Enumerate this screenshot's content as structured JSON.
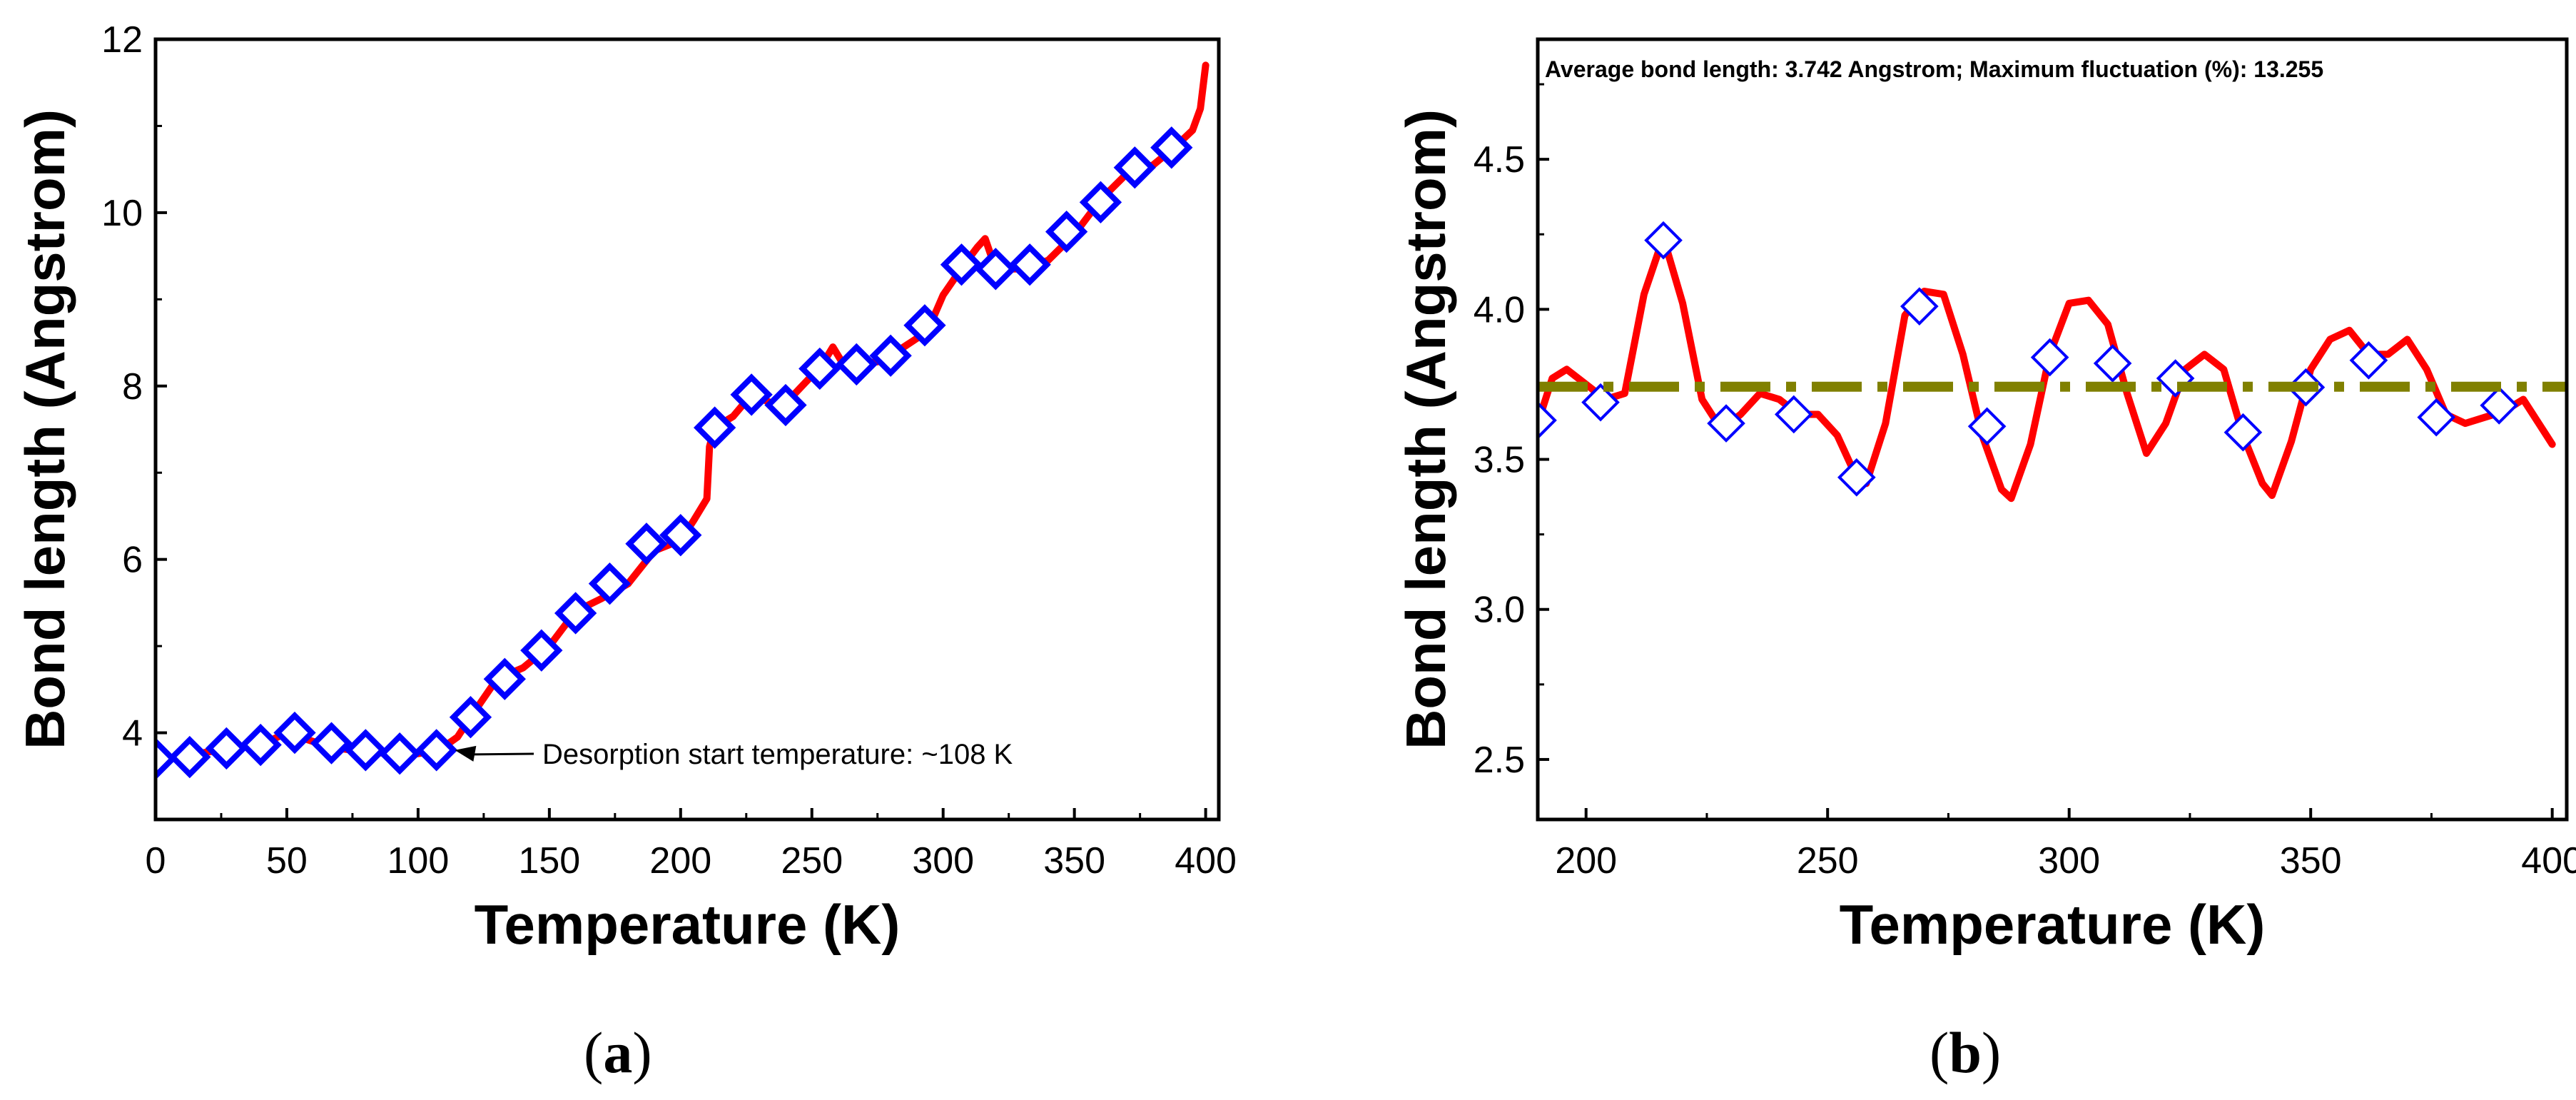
{
  "chart_data": [
    {
      "type": "line",
      "panel": "a",
      "xlabel": "Temperature (K)",
      "ylabel": "Bond length (Angstrom)",
      "xlim": [
        0,
        405
      ],
      "ylim": [
        3.0,
        12.0
      ],
      "xticks": [
        0,
        50,
        100,
        150,
        200,
        250,
        300,
        350,
        400
      ],
      "yticks": [
        4,
        6,
        8,
        10,
        12
      ],
      "series": [
        {
          "name": "bond length (line)",
          "color": "#ff0000",
          "x": [
            0,
            10,
            20,
            30,
            40,
            50,
            60,
            70,
            80,
            90,
            100,
            108,
            115,
            120,
            130,
            140,
            150,
            160,
            170,
            180,
            190,
            200,
            205,
            210,
            211,
            213,
            220,
            227,
            235,
            240,
            250,
            255,
            258,
            262,
            267,
            275,
            280,
            290,
            295,
            300,
            308,
            313,
            316,
            320,
            330,
            340,
            350,
            360,
            370,
            380,
            388,
            395,
            398,
            400
          ],
          "y": [
            3.7,
            3.72,
            3.78,
            3.82,
            3.86,
            4.0,
            3.9,
            3.82,
            3.78,
            3.76,
            3.76,
            3.8,
            3.95,
            4.18,
            4.62,
            4.75,
            5.0,
            5.4,
            5.55,
            5.72,
            6.1,
            6.22,
            6.45,
            6.7,
            7.3,
            7.52,
            7.65,
            7.9,
            7.8,
            7.8,
            8.12,
            8.3,
            8.45,
            8.25,
            8.25,
            8.28,
            8.35,
            8.55,
            8.7,
            9.05,
            9.4,
            9.6,
            9.7,
            9.35,
            9.35,
            9.45,
            9.75,
            10.15,
            10.45,
            10.55,
            10.75,
            10.95,
            11.2,
            11.7
          ]
        },
        {
          "name": "bond length (markers)",
          "color": "#0000ff",
          "marker": "diamond",
          "x": [
            0,
            13,
            27,
            40,
            53,
            67,
            80,
            93,
            107,
            120,
            133,
            147,
            160,
            173,
            187,
            200,
            213,
            227,
            240,
            253,
            267,
            280,
            293,
            307,
            320,
            333,
            347,
            360,
            373,
            387
          ],
          "y": [
            3.7,
            3.72,
            3.82,
            3.86,
            4.0,
            3.88,
            3.8,
            3.76,
            3.8,
            4.18,
            4.62,
            4.95,
            5.38,
            5.72,
            6.18,
            6.28,
            7.52,
            7.9,
            7.78,
            8.2,
            8.25,
            8.35,
            8.7,
            9.4,
            9.35,
            9.4,
            9.78,
            10.12,
            10.52,
            10.75
          ]
        }
      ],
      "annotations": [
        {
          "text": "Desorption start temperature: ~108 K",
          "x": 108,
          "y": 3.8
        }
      ]
    },
    {
      "type": "line",
      "panel": "b",
      "xlabel": "Temperature (K)",
      "ylabel": "Bond length (Angstrom)",
      "xlim": [
        190,
        403
      ],
      "ylim": [
        2.3,
        4.9
      ],
      "xticks": [
        200,
        250,
        300,
        350,
        400
      ],
      "yticks": [
        2.5,
        3.0,
        3.5,
        4.0,
        4.5
      ],
      "series": [
        {
          "name": "bond length (line)",
          "color": "#ff0000",
          "x": [
            190,
            193,
            196,
            200,
            204,
            208,
            212,
            216,
            220,
            224,
            228,
            232,
            236,
            240,
            244,
            248,
            252,
            256,
            258,
            262,
            266,
            270,
            274,
            278,
            282,
            286,
            288,
            292,
            296,
            300,
            304,
            308,
            312,
            316,
            320,
            324,
            328,
            332,
            336,
            340,
            342,
            346,
            350,
            354,
            358,
            362,
            366,
            370,
            374,
            378,
            382,
            386,
            390,
            394,
            398,
            400
          ],
          "y": [
            3.62,
            3.77,
            3.8,
            3.75,
            3.7,
            3.72,
            4.05,
            4.24,
            4.02,
            3.7,
            3.6,
            3.65,
            3.72,
            3.7,
            3.65,
            3.65,
            3.58,
            3.44,
            3.42,
            3.62,
            3.98,
            4.06,
            4.05,
            3.85,
            3.58,
            3.4,
            3.37,
            3.55,
            3.85,
            4.02,
            4.03,
            3.95,
            3.72,
            3.52,
            3.62,
            3.8,
            3.85,
            3.8,
            3.58,
            3.42,
            3.38,
            3.56,
            3.8,
            3.9,
            3.93,
            3.85,
            3.85,
            3.9,
            3.8,
            3.65,
            3.62,
            3.64,
            3.66,
            3.7,
            3.6,
            3.55
          ]
        },
        {
          "name": "bond length (markers)",
          "color": "#0000ff",
          "marker": "diamond",
          "x": [
            190,
            203,
            216,
            229,
            243,
            256,
            269,
            283,
            296,
            309,
            322,
            336,
            349,
            362,
            376,
            389
          ],
          "y": [
            3.63,
            3.69,
            4.23,
            3.62,
            3.65,
            3.44,
            4.01,
            3.61,
            3.84,
            3.82,
            3.77,
            3.59,
            3.74,
            3.83,
            3.64,
            3.68
          ]
        },
        {
          "name": "average",
          "color": "#808000",
          "style": "dash-dot",
          "x": [
            190,
            403
          ],
          "y": [
            3.742,
            3.742
          ]
        }
      ],
      "annotations": [
        {
          "text": "Average bond length: 3.742 Angstrom; Maximum fluctuation (%): 13.255"
        }
      ]
    }
  ],
  "captions": {
    "a": "a",
    "b": "b"
  }
}
